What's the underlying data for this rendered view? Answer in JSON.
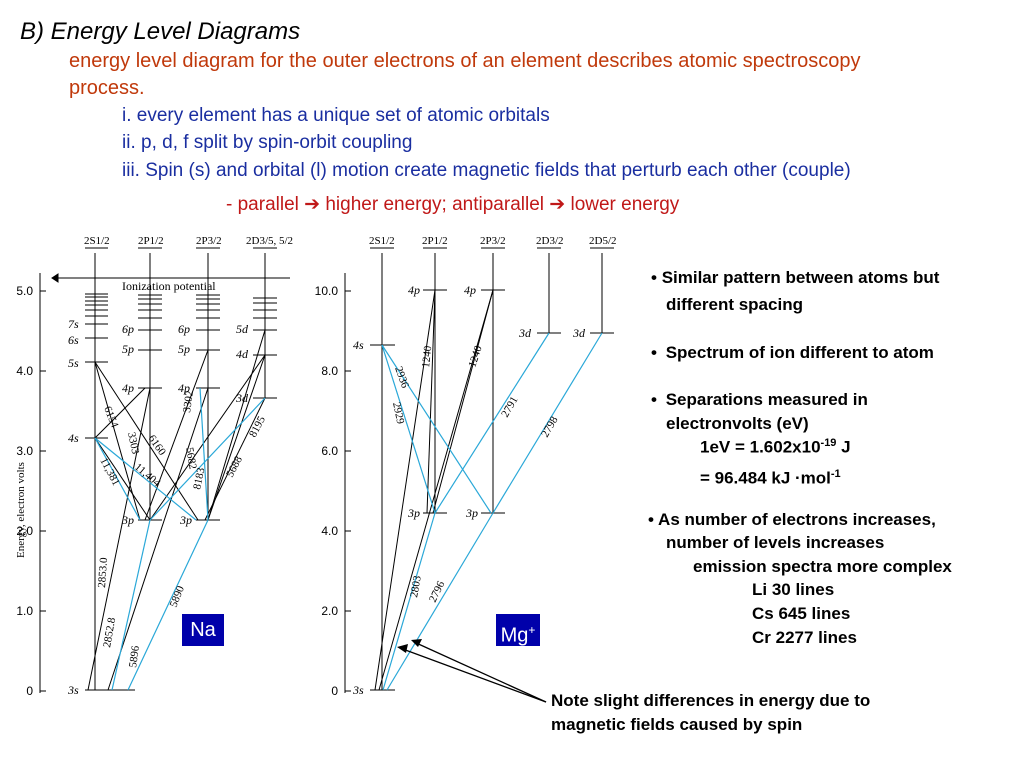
{
  "title": "B) Energy Level Diagrams",
  "intro": {
    "line1": "energy level diagram for the outer electrons of an element describes atomic spectroscopy",
    "line2": "process."
  },
  "points": [
    "i.   every element has a unique set of atomic orbitals",
    "ii.  p, d, f split by spin-orbit coupling",
    "iii. Spin (s) and orbital (l) motion create magnetic fields that perturb each other (couple)"
  ],
  "parallel_note": {
    "prefix": "- parallel ",
    "arrow1": "➔",
    "mid": " higher energy; antiparallel ",
    "arrow2": "➔",
    "suffix": " lower energy"
  },
  "bullets": {
    "b1_line1": "Similar pattern between atoms but",
    "b1_line2": "different spacing",
    "b2": "Spectrum of ion different to atom",
    "b3_line1": "Separations measured in",
    "b3_line2": "electronvolts (eV)",
    "ev1": "1eV = 1.602x10",
    "ev1_exp": "-19",
    "ev1_unit": " J",
    "ev2": "= 96.484 kJ ·mol",
    "ev2_exp": "-1",
    "b4_line1": "• As number of electrons increases,",
    "b4_line2": "number of levels increases",
    "emission": "emission spectra more complex",
    "li": "Li 30 lines",
    "cs": "Cs 645 lines",
    "cr": "Cr 2277 lines",
    "bullet_char": "•"
  },
  "bottom_note": {
    "line1": "Note slight differences in energy due to",
    "line2": "magnetic fields caused by spin"
  },
  "na_diagram": {
    "badge": "Na",
    "ylabel": "Energy, electron volts",
    "ionization": "Ionization potential",
    "y_ticks": [
      "5.0",
      "4.0",
      "3.0",
      "2.0",
      "1.0",
      "0"
    ],
    "col_heads": [
      "2S1/2",
      "2P1/2",
      "2P3/2",
      "2D3/5, 5/2"
    ],
    "levels": [
      "7s",
      "6s",
      "5s",
      "4s",
      "3s",
      "6p",
      "5p",
      "4p",
      "3p",
      "6p",
      "5p",
      "4p",
      "3p",
      "5d",
      "4d",
      "3d"
    ],
    "wavelengths": [
      "6154",
      "3303",
      "6160",
      "11,381",
      "11,404",
      "3302",
      "5682",
      "8183",
      "5688",
      "8195",
      "2853.0",
      "2852.8",
      "5896",
      "5890"
    ]
  },
  "mg_diagram": {
    "badge": "Mg",
    "badge_sup": "+",
    "y_ticks": [
      "10.0",
      "8.0",
      "6.0",
      "4.0",
      "2.0",
      "0"
    ],
    "col_heads": [
      "2S1/2",
      "2P1/2",
      "2P3/2",
      "2D3/2",
      "2D5/2"
    ],
    "levels": [
      "4s",
      "3s",
      "4p",
      "4p",
      "3p",
      "3p",
      "3d",
      "3d"
    ],
    "wavelengths": [
      "1240",
      "1240",
      "2936",
      "2929",
      "2791",
      "2798",
      "2803",
      "2796"
    ]
  },
  "colors": {
    "title": "#000000",
    "intro": "#c0390b",
    "points": "#1a2ea0",
    "parallel": "#c01818",
    "ev": "#c0390b",
    "emission": "#c0390b",
    "lines": "#6a1a8a",
    "note": "#6a1a8a",
    "badge_bg": "#0000aa",
    "cyan_transition": "#2aa8d8"
  }
}
